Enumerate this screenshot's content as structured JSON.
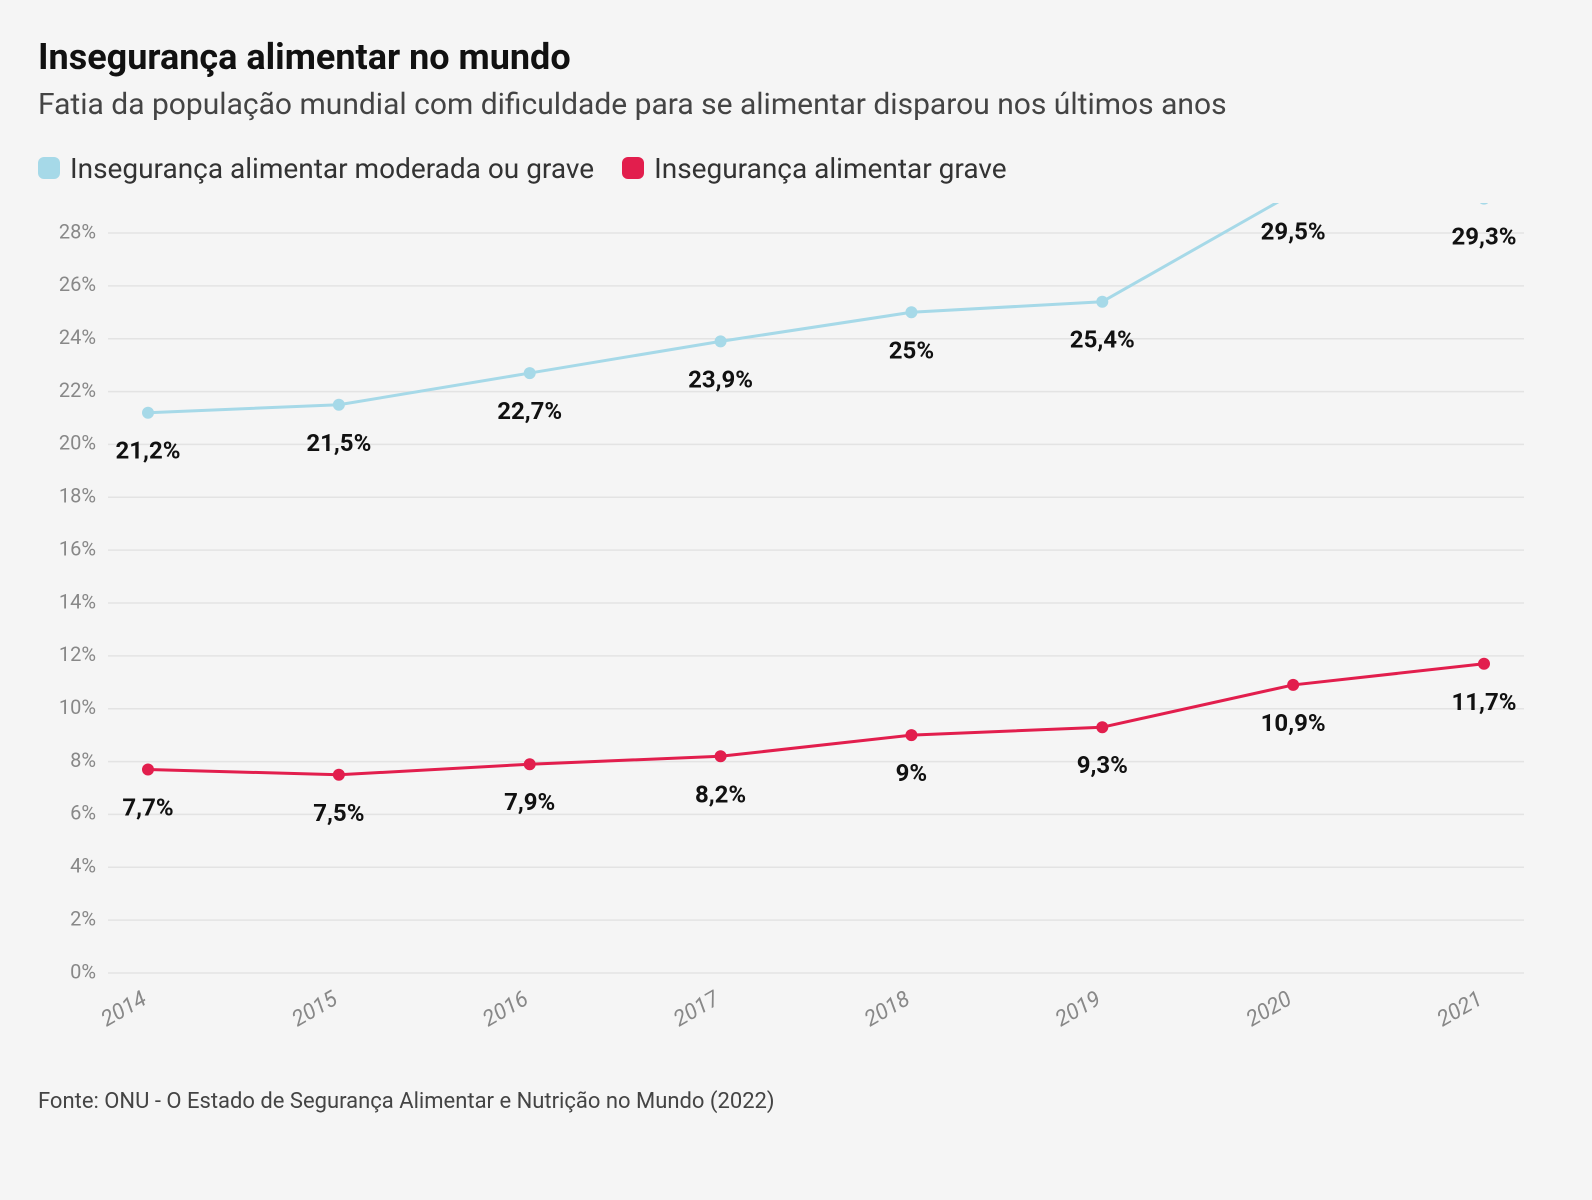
{
  "header": {
    "title": "Insegurança alimentar no mundo",
    "subtitle": "Fatia da população mundial com dificuldade para se alimentar disparou nos últimos anos"
  },
  "chart": {
    "type": "line",
    "background_color": "#f5f5f5",
    "grid_color": "#e3e3e3",
    "axis_text_color": "#888888",
    "label_text_color": "#111111",
    "xlabels": [
      "2014",
      "2015",
      "2016",
      "2017",
      "2018",
      "2019",
      "2020",
      "2021"
    ],
    "ylim": [
      0,
      28
    ],
    "ytick_step": 2,
    "ytick_suffix": "%",
    "line_width": 3,
    "marker_radius": 6,
    "data_label_fontsize": 24,
    "data_label_fontweight": 700,
    "axis_label_fontsize": 20,
    "xaxis_label_fontsize": 22,
    "series": [
      {
        "id": "moderate_or_severe",
        "name": "Insegurança alimentar moderada ou grave",
        "color": "#a6d9e8",
        "swatch_color": "#a6d9e8",
        "values": [
          21.2,
          21.5,
          22.7,
          23.9,
          25.0,
          25.4,
          29.5,
          29.3
        ],
        "value_labels": [
          "21,2%",
          "21,5%",
          "22,7%",
          "23,9%",
          "25%",
          "25,4%",
          "29,5%",
          "29,3%"
        ],
        "label_dy": 46
      },
      {
        "id": "severe",
        "name": "Insegurança alimentar grave",
        "color": "#e21e4d",
        "swatch_color": "#e21e4d",
        "values": [
          7.7,
          7.5,
          7.9,
          8.2,
          9.0,
          9.3,
          10.9,
          11.7
        ],
        "value_labels": [
          "7,7%",
          "7,5%",
          "7,9%",
          "8,2%",
          "9%",
          "9,3%",
          "10,9%",
          "11,7%"
        ],
        "label_dy": 46
      }
    ]
  },
  "source": {
    "text": "Fonte: ONU - O Estado de Segurança Alimentar e Nutrição no Mundo (2022)"
  }
}
